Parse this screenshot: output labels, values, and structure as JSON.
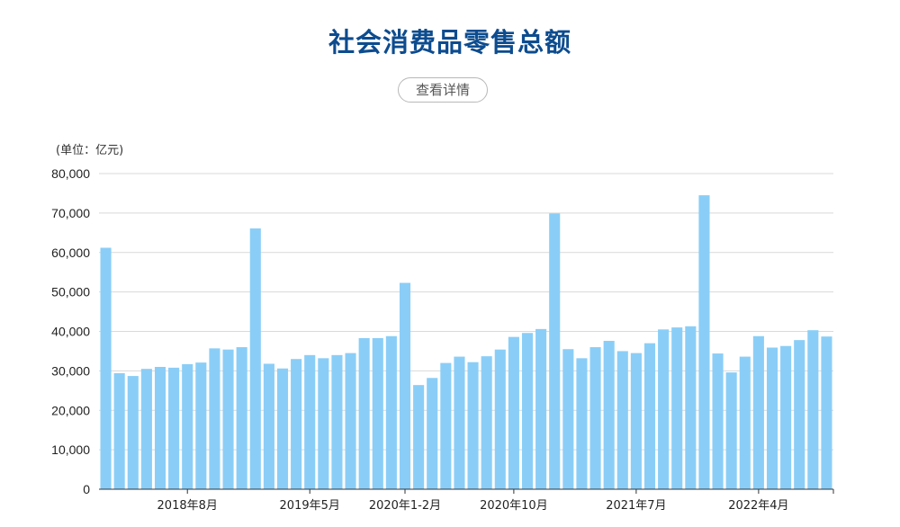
{
  "header": {
    "title": "社会消费品零售总额",
    "details_button_label": "查看详情"
  },
  "colors": {
    "title": "#0d4c8f",
    "bar": "#8acef7",
    "gridline": "#d9d9d9",
    "axis": "#333333"
  },
  "chart_data": {
    "type": "bar",
    "unit_label": "(单位：亿元)",
    "ylim": [
      0,
      80000
    ],
    "yticks": [
      0,
      10000,
      20000,
      30000,
      40000,
      50000,
      60000,
      70000,
      80000
    ],
    "ytick_labels": [
      "0",
      "10,000",
      "20,000",
      "30,000",
      "40,000",
      "50,000",
      "60,000",
      "70,000",
      "80,000"
    ],
    "x_tick_labels": [
      {
        "index": 6,
        "label": "2018年8月"
      },
      {
        "index": 15,
        "label": "2019年5月"
      },
      {
        "index": 22,
        "label": "2020年1-2月"
      },
      {
        "index": 30,
        "label": "2020年10月"
      },
      {
        "index": 39,
        "label": "2021年7月"
      },
      {
        "index": 48,
        "label": "2022年4月"
      }
    ],
    "grid": true,
    "legend": "none",
    "values": [
      61200,
      29400,
      28700,
      30500,
      31000,
      30800,
      31700,
      32100,
      35700,
      35400,
      36000,
      66100,
      31800,
      30600,
      33000,
      34000,
      33200,
      34000,
      34500,
      38300,
      38300,
      38800,
      52300,
      26400,
      28200,
      32000,
      33600,
      32200,
      33700,
      35400,
      38600,
      39600,
      40600,
      69900,
      35500,
      33200,
      36000,
      37600,
      35000,
      34500,
      37000,
      40500,
      41000,
      41300,
      74500,
      34400,
      29600,
      33600,
      38800,
      35900,
      36300,
      37800,
      40300,
      38700
    ]
  }
}
